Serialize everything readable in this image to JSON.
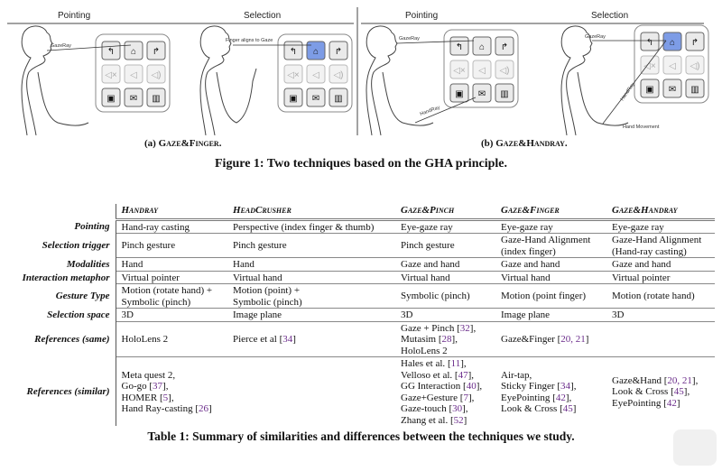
{
  "figure": {
    "panels": [
      {
        "id": "a",
        "phases": [
          "Pointing",
          "Selection"
        ],
        "caption_prefix": "(a) ",
        "caption_name": "Gaze&Finger."
      },
      {
        "id": "b",
        "phases": [
          "Pointing",
          "Selection"
        ],
        "caption_prefix": "(b) ",
        "caption_name": "Gaze&Handray."
      }
    ],
    "annotations": {
      "a_pointing": [
        "GazeRay"
      ],
      "a_selection": [
        "Finger aligns to Gaze"
      ],
      "b_pointing": [
        "GazeRay",
        "HandRay"
      ],
      "b_selection": [
        "GazeRay",
        "HandRay",
        "Hand Movement"
      ]
    },
    "ui_buttons": [
      "back-arrow-icon",
      "home-icon",
      "forward-arrow-icon",
      "mute-icon",
      "volume-low-icon",
      "volume-high-icon",
      "camera-icon",
      "mail-icon",
      "trash-icon"
    ],
    "highlight_color": "#7d9ce6",
    "caption": "Figure 1: Two techniques based on the GHA principle."
  },
  "table": {
    "columns": [
      "Handray",
      "HeadCrusher",
      "Gaze&Pinch",
      "Gaze&Finger",
      "Gaze&Handray"
    ],
    "rows": [
      {
        "label": "Pointing",
        "cells": [
          [
            "Hand-ray casting"
          ],
          [
            "Perspective (index finger & thumb)"
          ],
          [
            "Eye-gaze ray"
          ],
          [
            "Eye-gaze ray"
          ],
          [
            "Eye-gaze ray"
          ]
        ]
      },
      {
        "label": "Selection trigger",
        "cells": [
          [
            "Pinch gesture"
          ],
          [
            "Pinch gesture"
          ],
          [
            "Pinch gesture"
          ],
          [
            "Gaze-Hand Alignment",
            "(index finger)"
          ],
          [
            "Gaze-Hand Alignment",
            "(Hand-ray casting)"
          ]
        ]
      },
      {
        "label": "Modalities",
        "cells": [
          [
            "Hand"
          ],
          [
            "Hand"
          ],
          [
            "Gaze and hand"
          ],
          [
            "Gaze and hand"
          ],
          [
            "Gaze and hand"
          ]
        ]
      },
      {
        "label": "Interaction metaphor",
        "cells": [
          [
            "Virtual pointer"
          ],
          [
            "Virtual hand"
          ],
          [
            "Virtual hand"
          ],
          [
            "Virtual hand"
          ],
          [
            "Virtual pointer"
          ]
        ]
      },
      {
        "label": "Gesture Type",
        "cells": [
          [
            "Motion (rotate hand) +",
            "Symbolic (pinch)"
          ],
          [
            "Motion (point) +",
            "Symbolic (pinch)"
          ],
          [
            "Symbolic (pinch)"
          ],
          [
            "Motion (point finger)"
          ],
          [
            "Motion (rotate hand)"
          ]
        ]
      },
      {
        "label": "Selection space",
        "cells": [
          [
            "3D"
          ],
          [
            "Image plane"
          ],
          [
            "3D"
          ],
          [
            "Image plane"
          ],
          [
            "3D"
          ]
        ]
      },
      {
        "label": "References (same)",
        "cells": [
          [
            "HoloLens 2"
          ],
          [
            "Pierce et al [34]"
          ],
          [
            "Gaze + Pinch [32],",
            "Mutasim [28],",
            "HoloLens 2"
          ],
          [
            "Gaze&Finger [20, 21]"
          ],
          []
        ]
      },
      {
        "label": "References (similar)",
        "cells": [
          [
            "Meta quest 2,",
            "Go-go [37],",
            "HOMER [5],",
            "Hand Ray-casting [26]"
          ],
          [],
          [
            "Hales et al. [11],",
            "Velloso et al. [47],",
            "GG Interaction [40],",
            "Gaze+Gesture [7],",
            "Gaze-touch [30],",
            "Zhang et al. [52]"
          ],
          [
            "Air-tap,",
            "Sticky Finger [34],",
            "EyePointing [42],",
            "Look & Cross [45]"
          ],
          [
            "Gaze&Hand [20, 21],",
            "Look & Cross [45],",
            "EyePointing [42]"
          ]
        ]
      }
    ],
    "reference_color": "#6a2b8a",
    "caption": "Table 1: Summary of similarities and differences between the techniques we study."
  }
}
